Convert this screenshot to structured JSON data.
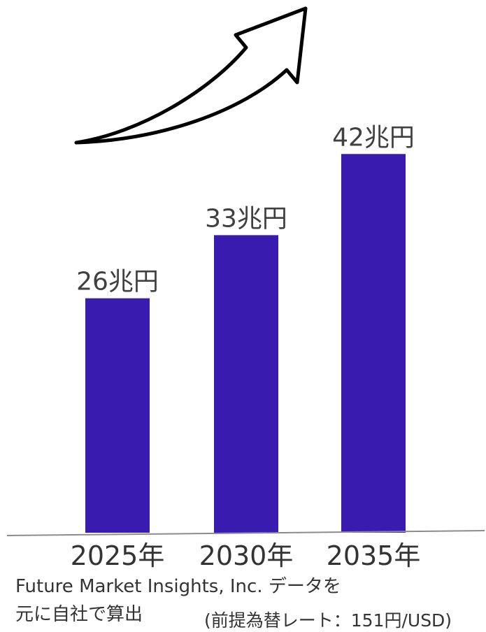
{
  "chart_data": {
    "type": "bar",
    "categories": [
      "2025年",
      "2030年",
      "2035年"
    ],
    "values": [
      26,
      33,
      42
    ],
    "data_labels": [
      "26兆円",
      "33兆円",
      "42兆円"
    ],
    "unit": "兆円",
    "title": "",
    "xlabel": "",
    "ylabel": "",
    "ylim": [
      0,
      49
    ],
    "grid": false,
    "legend": "none",
    "bar_color": "#391BB0",
    "axis_color": "#8C8C8C",
    "decoration": "upward-trend-arrow-icon"
  },
  "notes": {
    "source_line1": "Future Market Insights, Inc. データを",
    "source_line2": "元に自社で算出",
    "exchange_rate": "(前提為替レート：151円/USD)"
  }
}
